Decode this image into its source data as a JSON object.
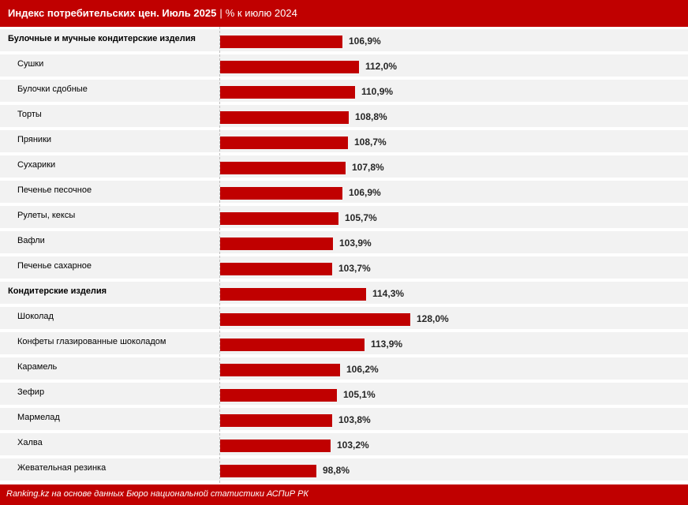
{
  "header": {
    "title_main": "Индекс потребительских цен. Июль 2025",
    "separator": "|",
    "title_sub": "% к июлю 2024"
  },
  "footer": {
    "source": "Ranking.kz на основе данных Бюро национальной статистики АСПиР РК"
  },
  "colors": {
    "bar": "#c00000",
    "header": "#c00000",
    "row_bg": "#f2f2f2"
  },
  "chart_data": {
    "type": "bar",
    "orientation": "horizontal",
    "categories": [
      "Булочные и мучные кондитерские изделия",
      "Сушки",
      "Булочки сдобные",
      "Торты",
      "Пряники",
      "Сухарики",
      "Печенье песочное",
      "Рулеты, кексы",
      "Вафли",
      "Печенье сахарное",
      "Кондитерские изделия",
      "Шоколад",
      "Конфеты глазированные шоколадом",
      "Карамель",
      "Зефир",
      "Мармелад",
      "Халва",
      "Жевательная резинка"
    ],
    "values": [
      106.9,
      112.0,
      110.9,
      108.8,
      108.7,
      107.8,
      106.9,
      105.7,
      103.9,
      103.7,
      114.3,
      128.0,
      113.9,
      106.2,
      105.1,
      103.8,
      103.2,
      98.8
    ],
    "value_labels": [
      "106,9%",
      "112,0%",
      "110,9%",
      "108,8%",
      "108,7%",
      "107,8%",
      "106,9%",
      "105,7%",
      "103,9%",
      "103,7%",
      "114,3%",
      "128,0%",
      "113,9%",
      "106,2%",
      "105,1%",
      "103,8%",
      "103,2%",
      "98,8%"
    ],
    "group_headers": [
      0,
      10
    ],
    "xlim": [
      0,
      128
    ],
    "grid": false,
    "legend": "none"
  }
}
